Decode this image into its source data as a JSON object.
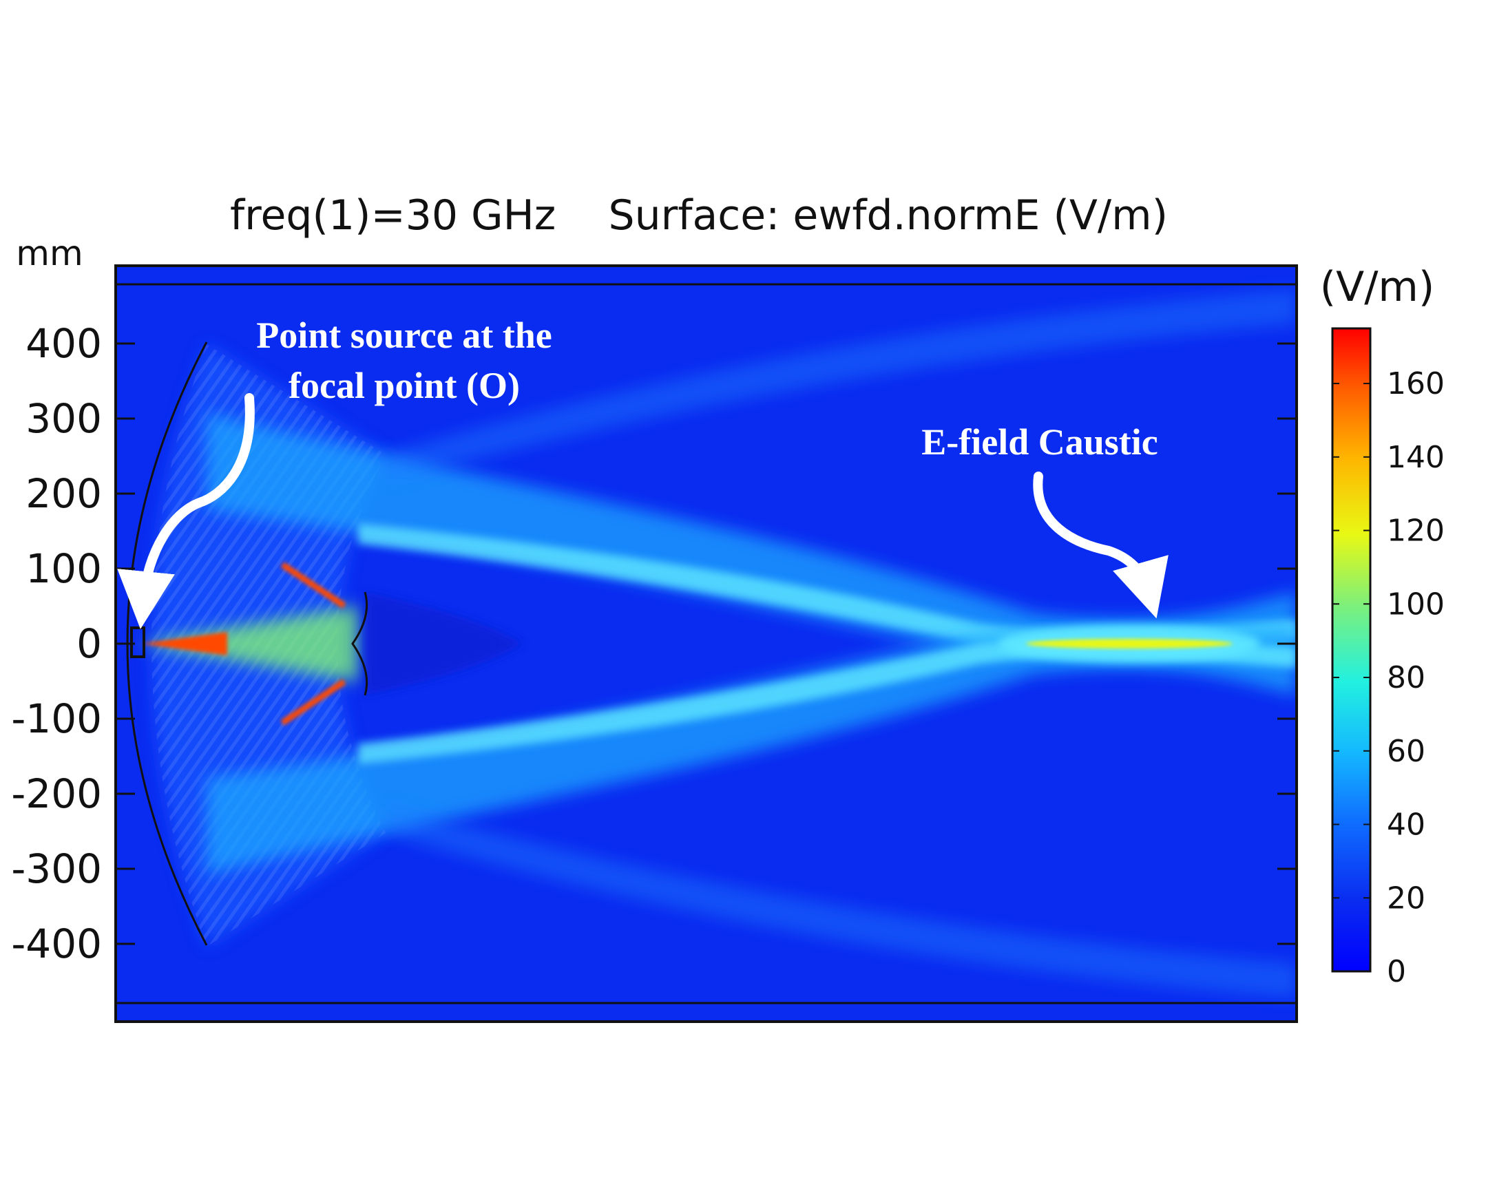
{
  "chart_data": {
    "type": "heatmap",
    "title": "freq(1)=30 GHz    Surface: ewfd.normE (V/m)",
    "ylabel": "mm",
    "ylim": [
      -500,
      500
    ],
    "yticks": [
      {
        "value": 400,
        "label": "400"
      },
      {
        "value": 300,
        "label": "300"
      },
      {
        "value": 200,
        "label": "200"
      },
      {
        "value": 100,
        "label": "100"
      },
      {
        "value": 0,
        "label": "0"
      },
      {
        "value": -100,
        "label": "-100"
      },
      {
        "value": -200,
        "label": "-200"
      },
      {
        "value": -300,
        "label": "-300"
      },
      {
        "value": -400,
        "label": "-400"
      }
    ],
    "colorbar": {
      "title": "(V/m)",
      "range": [
        0,
        175
      ],
      "colormap": "jet",
      "ticks": [
        {
          "value": 0,
          "label": "0"
        },
        {
          "value": 20,
          "label": "20"
        },
        {
          "value": 40,
          "label": "40"
        },
        {
          "value": 60,
          "label": "60"
        },
        {
          "value": 80,
          "label": "80"
        },
        {
          "value": 100,
          "label": "100"
        },
        {
          "value": 120,
          "label": "120"
        },
        {
          "value": 140,
          "label": "140"
        },
        {
          "value": 160,
          "label": "160"
        }
      ]
    },
    "annotations": [
      {
        "name": "point-source",
        "lines": [
          "Point source at the",
          "focal point (O)"
        ]
      },
      {
        "name": "caustic",
        "lines": [
          "E-field Caustic"
        ]
      }
    ]
  },
  "colors": {
    "background_field": "#0a2cf0",
    "beam": "#28b4ff",
    "beam_bright": "#5ee8ff",
    "hot": "#ff4a00",
    "annotation_text": "#ffffff"
  }
}
